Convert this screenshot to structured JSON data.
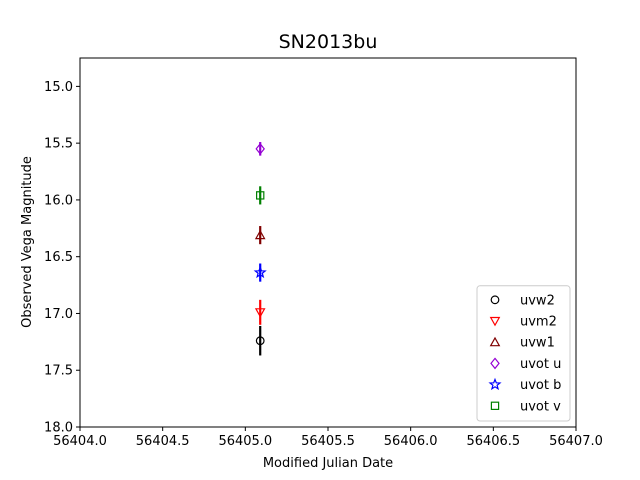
{
  "chart_data": {
    "type": "scatter",
    "title": "SN2013bu",
    "xlabel": "Modified Julian Date",
    "ylabel": "Observed Vega Magnitude",
    "xlim": [
      56404.0,
      56407.0
    ],
    "ylim": [
      18.0,
      14.75
    ],
    "y_inverted": true,
    "xticks": [
      56404.0,
      56404.5,
      56405.0,
      56405.5,
      56406.0,
      56406.5,
      56407.0
    ],
    "xtick_labels": [
      "56404.0",
      "56404.5",
      "56405.0",
      "56405.5",
      "56406.0",
      "56406.5",
      "56407.0"
    ],
    "yticks": [
      15.0,
      15.5,
      16.0,
      16.5,
      17.0,
      17.5,
      18.0
    ],
    "ytick_labels": [
      "15.0",
      "15.5",
      "16.0",
      "16.5",
      "17.0",
      "17.5",
      "18.0"
    ],
    "legend_position": "lower-right",
    "series": [
      {
        "name": "uvw2",
        "marker": "circle",
        "color": "#000000",
        "x": [
          56405.09
        ],
        "y": [
          17.24
        ],
        "yerr": [
          0.13
        ]
      },
      {
        "name": "uvm2",
        "marker": "triangle-down",
        "color": "#ff0000",
        "x": [
          56405.09
        ],
        "y": [
          16.99
        ],
        "yerr": [
          0.11
        ]
      },
      {
        "name": "uvw1",
        "marker": "triangle-up",
        "color": "#800000",
        "x": [
          56405.09
        ],
        "y": [
          16.31
        ],
        "yerr": [
          0.08
        ]
      },
      {
        "name": "uvot u",
        "marker": "diamond",
        "color": "#9400d3",
        "x": [
          56405.09
        ],
        "y": [
          15.55
        ],
        "yerr": [
          0.06
        ]
      },
      {
        "name": "uvot b",
        "marker": "star",
        "color": "#0000ff",
        "x": [
          56405.09
        ],
        "y": [
          16.64
        ],
        "yerr": [
          0.08
        ]
      },
      {
        "name": "uvot v",
        "marker": "square",
        "color": "#008000",
        "x": [
          56405.09
        ],
        "y": [
          15.96
        ],
        "yerr": [
          0.08
        ]
      }
    ]
  }
}
